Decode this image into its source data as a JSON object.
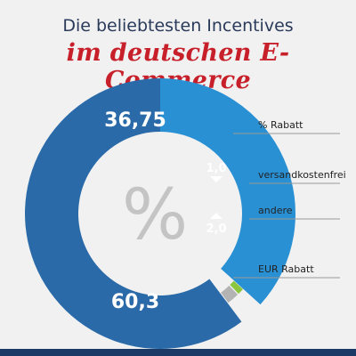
{
  "header": {
    "title_line1": "Die beliebtesten Incentives",
    "title_line2": "im deutschen E-Commerce"
  },
  "center_symbol": "%",
  "colors": {
    "background": "#f1f1f1",
    "title_dark": "#2a3a5a",
    "title_red": "#c8202a",
    "bottom_bar": "#1c3a66"
  },
  "chart_data": {
    "type": "pie",
    "title": "",
    "slices": [
      {
        "label": "% Rabatt",
        "value": 36.75,
        "display": "36,75",
        "color": "#2a90d4"
      },
      {
        "label": "versandkostenfrei",
        "value": 1.0,
        "display": "1,0",
        "color": "#8cc63f"
      },
      {
        "label": "andere",
        "value": 2.0,
        "display": "2,0",
        "color": "#b3b3b3"
      },
      {
        "label": "EUR Rabatt",
        "value": 60.3,
        "display": "60,3",
        "color": "#2a6aa8"
      }
    ],
    "legend_position": "right"
  }
}
